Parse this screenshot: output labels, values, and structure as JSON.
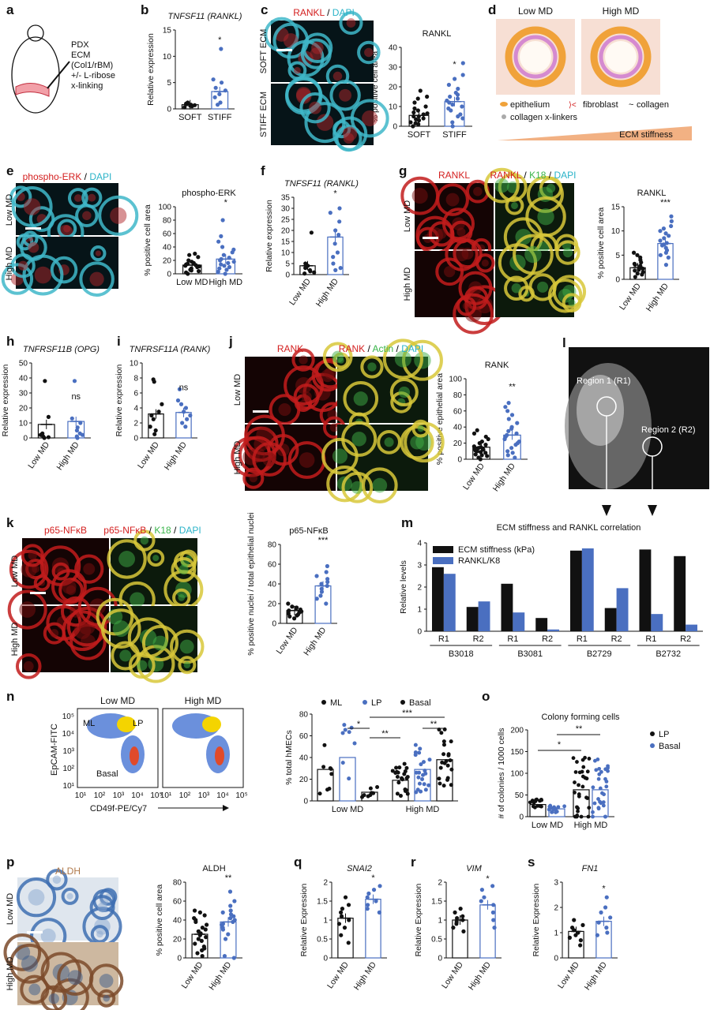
{
  "colors": {
    "black": "#111111",
    "blue": "#4a6fc0",
    "red": "#d42020",
    "cyan": "#2ab3c8",
    "green": "#39b54a",
    "brown": "#b0794a"
  },
  "panel_letters": [
    "a",
    "b",
    "c",
    "d",
    "e",
    "f",
    "g",
    "h",
    "i",
    "j",
    "k",
    "l",
    "m",
    "n",
    "o",
    "p",
    "q",
    "r",
    "s"
  ],
  "a": {
    "lines": [
      "PDX",
      "ECM",
      "(Col1/rBM)",
      "+/- L-ribose",
      "x-linking"
    ]
  },
  "c": {
    "title_red": "RANKL",
    "title_sep": " / ",
    "title_dapi": "DAPI",
    "rows": [
      "SOFT ECM",
      "STIFF ECM"
    ]
  },
  "d": {
    "titles": [
      "Low MD",
      "High MD"
    ],
    "legend": [
      "epithelium",
      "fibroblast",
      "collagen",
      "collagen x-linkers"
    ],
    "arrow_label": "ECM stiffness"
  },
  "e": {
    "title_red": "phospho-ERK",
    "title_sep": " / ",
    "title_dapi": "DAPI",
    "rows": [
      "Low MD",
      "High MD"
    ]
  },
  "g": {
    "col1": "RANKL",
    "col2_red": "RANKL",
    "col2_green": "K18",
    "col2_dapi": "DAPI",
    "sep": " / ",
    "rows": [
      "Low MD",
      "High MD"
    ]
  },
  "j": {
    "col1": "RANK",
    "col2_red": "RANK",
    "col2_green": "Actin",
    "col2_dapi": "DAPI",
    "sep": " / ",
    "rows": [
      "Low MD",
      "High MD"
    ]
  },
  "k": {
    "col1": "p65-NFκB",
    "col2_red": "p65-NFκB",
    "col2_green": "K18",
    "col2_dapi": "DAPI",
    "sep": " / ",
    "rows": [
      "Low MD",
      "High MD"
    ]
  },
  "l": {
    "regions": [
      "Region 1 (R1)",
      "Region 2 (R2)"
    ]
  },
  "n_flow": {
    "titles": [
      "Low MD",
      "High MD"
    ],
    "gates": [
      "ML",
      "LP",
      "Basal"
    ],
    "ylabel": "EpCAM-FITC",
    "xlabel": "CD49f-PE/Cy7",
    "ticks": [
      "10¹",
      "10²",
      "10³",
      "10⁴",
      "10⁵"
    ],
    "yticks": [
      "10⁵",
      "10⁴",
      "10³",
      "10²",
      "10¹"
    ]
  },
  "p_img": {
    "title": "ALDH",
    "rows": [
      "Low MD",
      "High MD"
    ]
  },
  "chart_data": [
    {
      "id": "b",
      "type": "bar",
      "title": "TNFSF11 (RANKL)",
      "ylabel": "Relative expression",
      "categories": [
        "SOFT",
        "STIFF"
      ],
      "ylim": [
        0,
        15
      ],
      "yticks": [
        0,
        5,
        10,
        15
      ],
      "values": [
        0.8,
        3.3
      ],
      "significance": [
        "",
        "*"
      ],
      "points": [
        [
          0.3,
          0.5,
          0.6,
          0.7,
          0.8,
          0.9,
          1.0,
          1.2
        ],
        [
          0.8,
          1.2,
          2.2,
          2.8,
          3.5,
          4.0,
          5.0,
          5.6,
          11.4
        ]
      ]
    },
    {
      "id": "c",
      "type": "bar",
      "title": "RANKL",
      "ylabel": "% positive cell area",
      "categories": [
        "SOFT",
        "STIFF"
      ],
      "ylim": [
        0,
        40
      ],
      "yticks": [
        0,
        10,
        20,
        30,
        40
      ],
      "values": [
        5.5,
        12.5
      ],
      "significance": [
        "",
        "*"
      ],
      "points": [
        [
          0,
          1,
          1.5,
          2,
          3,
          3.5,
          4,
          5,
          5,
          6,
          6.5,
          7,
          8,
          9,
          10,
          12,
          14,
          15,
          18
        ],
        [
          0,
          2,
          4,
          5,
          6,
          8,
          9,
          10,
          11,
          12,
          13,
          14,
          15,
          16,
          17,
          19,
          21,
          24,
          26,
          32
        ]
      ]
    },
    {
      "id": "e",
      "type": "bar",
      "title": "phospho-ERK",
      "ylabel": "% positive cell area",
      "categories": [
        "Low MD",
        "High MD"
      ],
      "ylim": [
        0,
        100
      ],
      "yticks": [
        0,
        20,
        40,
        60,
        80,
        100
      ],
      "values": [
        13,
        22
      ],
      "significance": [
        "",
        "*"
      ],
      "points": [
        [
          0,
          2,
          4,
          5,
          6,
          8,
          10,
          11,
          12,
          13,
          14,
          15,
          16,
          18,
          20,
          25,
          28,
          30
        ],
        [
          0,
          3,
          6,
          8,
          10,
          12,
          14,
          16,
          18,
          20,
          22,
          24,
          28,
          32,
          36,
          40,
          48,
          56,
          80
        ]
      ]
    },
    {
      "id": "f",
      "type": "bar",
      "title": "TNFSF11 (RANKL)",
      "ylabel": "Relative expression",
      "categories": [
        "Low MD",
        "High MD"
      ],
      "ylim": [
        0,
        35
      ],
      "yticks": [
        0,
        5,
        10,
        15,
        20,
        25,
        30,
        35
      ],
      "values": [
        4,
        17
      ],
      "significance": [
        "",
        "*"
      ],
      "points": [
        [
          0.5,
          1,
          1.5,
          2,
          3,
          4,
          5,
          19
        ],
        [
          2,
          3,
          5,
          8,
          10,
          14,
          18,
          20,
          24,
          28,
          30
        ]
      ]
    },
    {
      "id": "g",
      "type": "bar",
      "title": "RANKL",
      "ylabel": "% positive cell area",
      "categories": [
        "Low MD",
        "High MD"
      ],
      "ylim": [
        0,
        15
      ],
      "yticks": [
        0,
        5,
        10,
        15
      ],
      "values": [
        2.4,
        7.4
      ],
      "significance": [
        "",
        "***"
      ],
      "points": [
        [
          0.5,
          1,
          1.2,
          1.5,
          1.8,
          2,
          2.2,
          2.4,
          2.6,
          2.8,
          3,
          3.2,
          3.5,
          4,
          4.5,
          5,
          5.5
        ],
        [
          3,
          4.5,
          5,
          5.5,
          6,
          6.5,
          7,
          7.2,
          7.5,
          8,
          8.5,
          9,
          9.5,
          10,
          10.5,
          11,
          12,
          13
        ]
      ]
    },
    {
      "id": "h",
      "type": "bar",
      "title": "TNFRSF11B (OPG)",
      "ylabel": "Relative expression",
      "categories": [
        "Low MD",
        "High MD"
      ],
      "ylim": [
        0,
        50
      ],
      "yticks": [
        0,
        10,
        20,
        30,
        40,
        50
      ],
      "values": [
        9,
        11
      ],
      "significance": [
        "",
        "ns"
      ],
      "points": [
        [
          0,
          0.5,
          1,
          2,
          3,
          14,
          38
        ],
        [
          0,
          1,
          2,
          3,
          5,
          7,
          10,
          13,
          38
        ]
      ]
    },
    {
      "id": "i",
      "type": "bar",
      "title": "TNFRSF11A (RANK)",
      "ylabel": "Relative expression",
      "categories": [
        "Low MD",
        "High MD"
      ],
      "ylim": [
        0,
        10
      ],
      "yticks": [
        0,
        2,
        4,
        6,
        8,
        10
      ],
      "values": [
        3.2,
        3.4
      ],
      "significance": [
        "",
        "ns"
      ],
      "points": [
        [
          0.5,
          1,
          1.5,
          2.5,
          3,
          3.5,
          4.5,
          7.5,
          7.8
        ],
        [
          1.5,
          2,
          2.5,
          3,
          3.5,
          4,
          4.5,
          5,
          6.5
        ]
      ]
    },
    {
      "id": "j",
      "type": "bar",
      "title": "RANK",
      "ylabel": "% positive epithelial area",
      "categories": [
        "Low MD",
        "High MD"
      ],
      "ylim": [
        0,
        100
      ],
      "yticks": [
        0,
        20,
        40,
        60,
        80,
        100
      ],
      "values": [
        15,
        30
      ],
      "significance": [
        "",
        "**"
      ],
      "points": [
        [
          0,
          2,
          4,
          5,
          6,
          8,
          9,
          10,
          11,
          12,
          13,
          14,
          15,
          16,
          18,
          20,
          22,
          25,
          28,
          32,
          36
        ],
        [
          2,
          5,
          8,
          10,
          14,
          18,
          20,
          22,
          25,
          28,
          30,
          32,
          35,
          38,
          40,
          45,
          50,
          55,
          60,
          65,
          70
        ]
      ]
    },
    {
      "id": "k",
      "type": "bar",
      "title": "p65-NFκB",
      "ylabel": "% positive nuclei / total epithelial nuclei",
      "categories": [
        "Low MD",
        "High MD"
      ],
      "ylim": [
        0,
        80
      ],
      "yticks": [
        0,
        20,
        40,
        60,
        80
      ],
      "values": [
        13,
        38
      ],
      "significance": [
        "",
        "***"
      ],
      "points": [
        [
          5,
          7,
          8,
          9,
          10,
          11,
          12,
          13,
          14,
          15,
          16,
          17,
          20
        ],
        [
          20,
          25,
          28,
          32,
          35,
          38,
          40,
          42,
          45,
          48,
          52,
          58
        ]
      ]
    },
    {
      "id": "m",
      "type": "bar",
      "title": "ECM stiffness and RANKL correlation",
      "ylabel": "Relative levels",
      "ylim": [
        0,
        4
      ],
      "yticks": [
        0,
        1,
        2,
        3,
        4
      ],
      "categories": [
        "R1",
        "R2",
        "R1",
        "R2",
        "R1",
        "R2",
        "R1",
        "R2"
      ],
      "groups": [
        "B3018",
        "B3081",
        "B2729",
        "B2732"
      ],
      "series": [
        {
          "name": "ECM stiffness (kPa)",
          "values": [
            2.9,
            1.1,
            2.15,
            0.6,
            3.65,
            1.05,
            3.7,
            3.4
          ]
        },
        {
          "name": "RANKL/K8",
          "values": [
            2.6,
            1.35,
            0.85,
            0.08,
            3.75,
            1.95,
            0.78,
            0.3
          ]
        }
      ],
      "legend": "top-left"
    },
    {
      "id": "n",
      "type": "bar",
      "ylabel": "% total hMECs",
      "ylim": [
        0,
        80
      ],
      "yticks": [
        0,
        20,
        40,
        60,
        80
      ],
      "groups": [
        "Low MD",
        "High MD"
      ],
      "series": [
        {
          "name": "ML",
          "values": [
            29,
            19
          ]
        },
        {
          "name": "LP",
          "values": [
            40,
            29
          ]
        },
        {
          "name": "Basal",
          "values": [
            8,
            38
          ]
        }
      ],
      "significance": [
        "*",
        "**",
        "**",
        "***"
      ],
      "legend": "top"
    },
    {
      "id": "o",
      "type": "bar",
      "title": "Colony forming cells",
      "ylabel": "# of colonies / 1000 cells",
      "ylim": [
        0,
        200
      ],
      "yticks": [
        0,
        50,
        100,
        150,
        200
      ],
      "groups": [
        "Low MD",
        "High MD"
      ],
      "series": [
        {
          "name": "LP",
          "values": [
            28,
            62
          ]
        },
        {
          "name": "Basal",
          "values": [
            18,
            62
          ]
        }
      ],
      "significance": [
        "*",
        "**"
      ],
      "legend": "right"
    },
    {
      "id": "p",
      "type": "bar",
      "title": "ALDH",
      "ylabel": "% positive cell area",
      "categories": [
        "Low MD",
        "High MD"
      ],
      "ylim": [
        0,
        80
      ],
      "yticks": [
        0,
        20,
        40,
        60,
        80
      ],
      "values": [
        25,
        38
      ],
      "significance": [
        "",
        "**"
      ],
      "points": [
        [
          2,
          5,
          8,
          10,
          12,
          15,
          18,
          20,
          22,
          24,
          26,
          28,
          30,
          32,
          35,
          38,
          40,
          42,
          45,
          48,
          50
        ],
        [
          0,
          2,
          20,
          25,
          30,
          32,
          35,
          36,
          38,
          40,
          42,
          44,
          46,
          48,
          50,
          55,
          60,
          70
        ]
      ]
    },
    {
      "id": "q",
      "type": "bar",
      "title": "SNAI2",
      "ylabel": "Relative Expression",
      "categories": [
        "Low MD",
        "High MD"
      ],
      "ylim": [
        0,
        2.0
      ],
      "yticks": [
        0.0,
        0.5,
        1.0,
        1.5,
        2.0
      ],
      "values": [
        1.05,
        1.55
      ],
      "significance": [
        "",
        "*"
      ],
      "points": [
        [
          0.4,
          0.6,
          0.8,
          0.9,
          1.0,
          1.1,
          1.2,
          1.3,
          1.4,
          1.6
        ],
        [
          1.2,
          1.3,
          1.4,
          1.5,
          1.6,
          1.7,
          1.8,
          1.9
        ]
      ]
    },
    {
      "id": "r",
      "type": "bar",
      "title": "VIM",
      "ylabel": "Relative Expression",
      "categories": [
        "Low MD",
        "High MD"
      ],
      "ylim": [
        0,
        2.0
      ],
      "yticks": [
        0.0,
        0.5,
        1.0,
        1.5,
        2.0
      ],
      "values": [
        1.0,
        1.4
      ],
      "significance": [
        "",
        "*"
      ],
      "points": [
        [
          0.7,
          0.8,
          0.9,
          0.95,
          1.0,
          1.05,
          1.1,
          1.2,
          1.3
        ],
        [
          0.8,
          1.0,
          1.2,
          1.4,
          1.5,
          1.6,
          1.8,
          1.9
        ]
      ]
    },
    {
      "id": "s",
      "type": "bar",
      "title": "FN1",
      "ylabel": "Relative Expression",
      "categories": [
        "Low MD",
        "High MD"
      ],
      "ylim": [
        0,
        3
      ],
      "yticks": [
        0,
        1,
        2,
        3
      ],
      "values": [
        1.05,
        1.45
      ],
      "significance": [
        "",
        "*"
      ],
      "points": [
        [
          0.5,
          0.7,
          0.8,
          0.9,
          1.0,
          1.1,
          1.2,
          1.3,
          1.5
        ],
        [
          0.9,
          1.0,
          1.2,
          1.4,
          1.6,
          1.8,
          2.0,
          2.4
        ]
      ]
    }
  ]
}
